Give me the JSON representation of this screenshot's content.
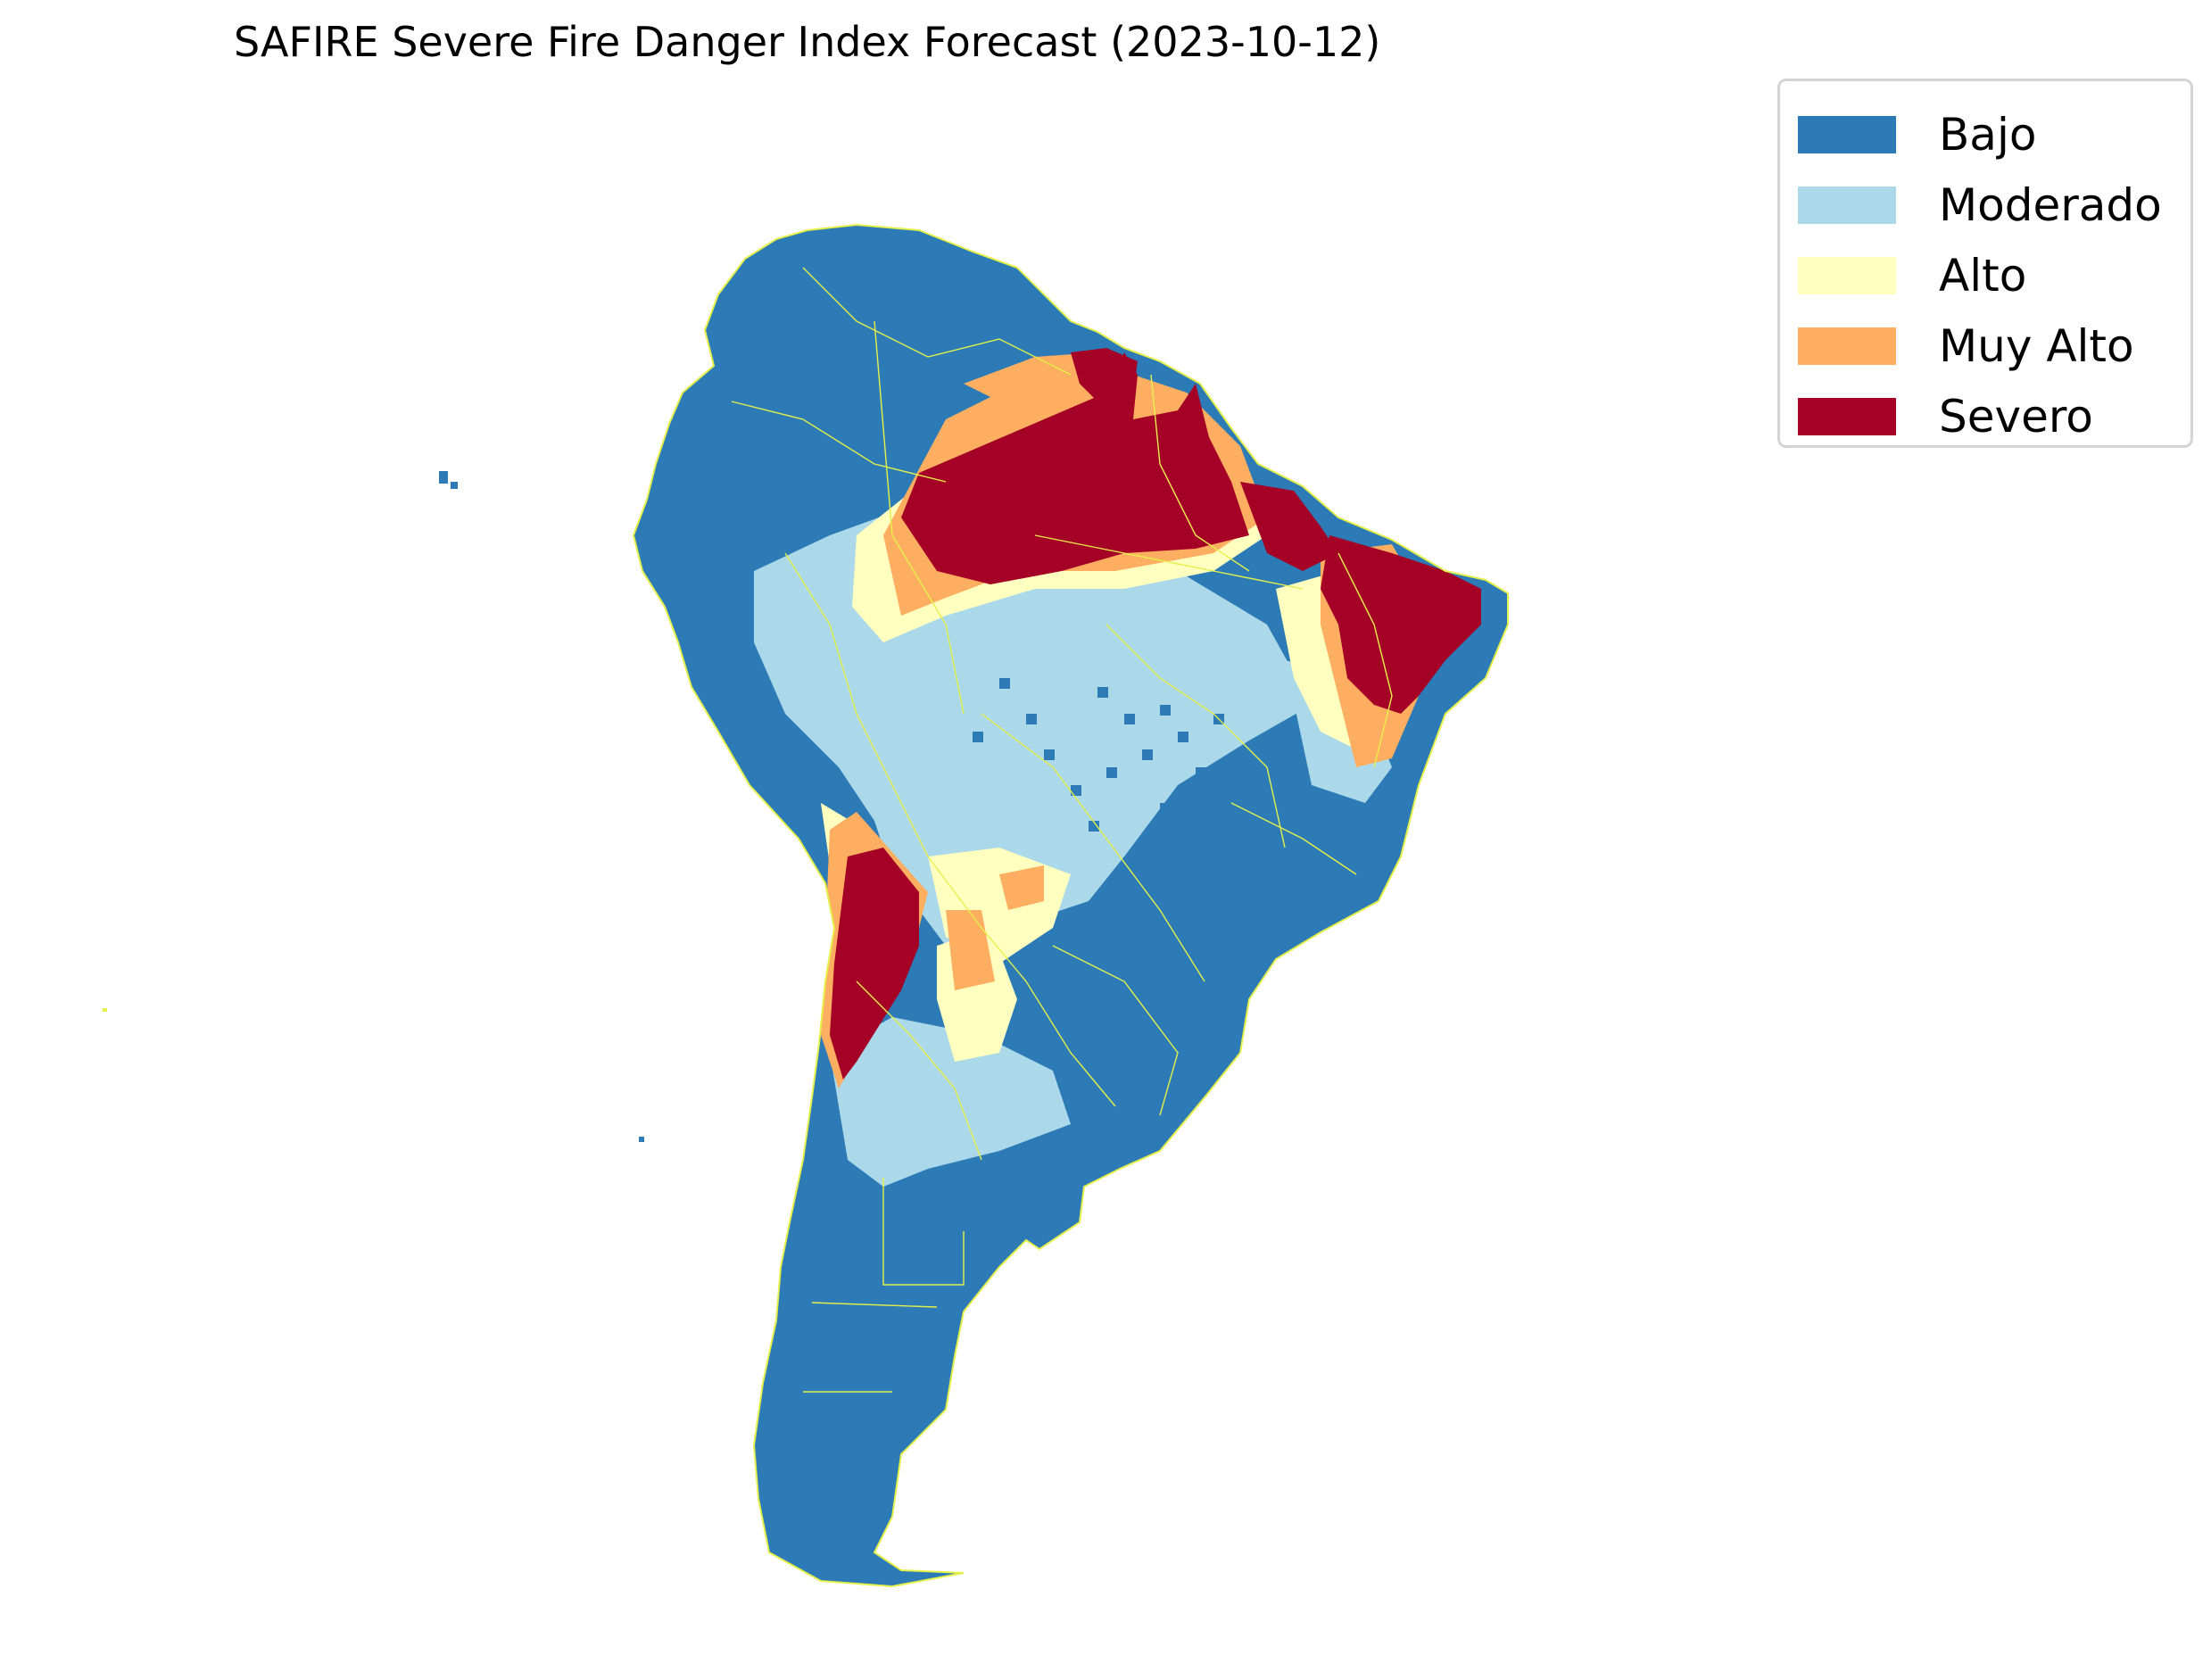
{
  "title": "SAFIRE Severe Fire Danger Index Forecast (2023-10-12)",
  "legend": [
    {
      "label": "Bajo",
      "color": "#2c7bb6"
    },
    {
      "label": "Moderado",
      "color": "#abd9e9"
    },
    {
      "label": "Alto",
      "color": "#ffffbf"
    },
    {
      "label": "Muy Alto",
      "color": "#fdae61"
    },
    {
      "label": "Severo",
      "color": "#a50026"
    }
  ],
  "border_color": "#e6f04a"
}
